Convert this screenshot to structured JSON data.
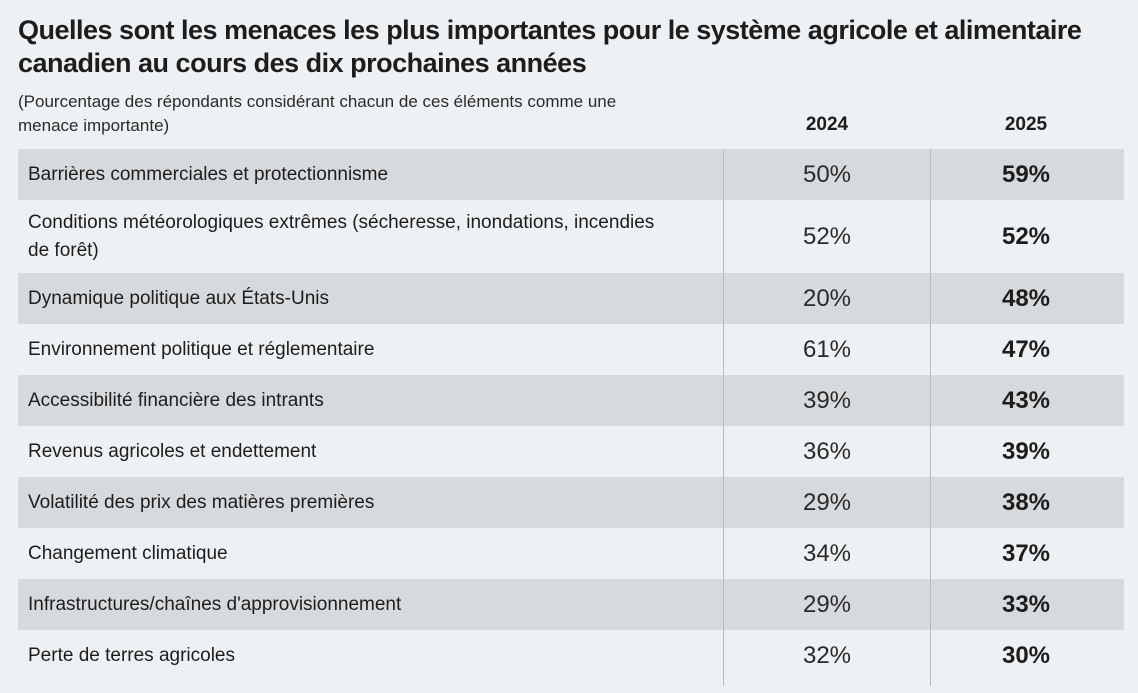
{
  "title": "Quelles sont les menaces les plus importantes pour le système agricole et alimentaire canadien au cours des dix prochaines années",
  "subtitle": "(Pourcentage des répondants considérant chacun de ces éléments comme une menace importante)",
  "columns": [
    "2024",
    "2025"
  ],
  "rows": [
    {
      "label": "Barrières commerciales et protectionnisme",
      "v2024": "50%",
      "v2025": "59%"
    },
    {
      "label": "Conditions météorologiques extrêmes (sécheresse, inondations, incendies de forêt)",
      "v2024": "52%",
      "v2025": "52%"
    },
    {
      "label": "Dynamique politique aux États-Unis",
      "v2024": "20%",
      "v2025": "48%"
    },
    {
      "label": "Environnement politique et réglementaire",
      "v2024": "61%",
      "v2025": "47%"
    },
    {
      "label": "Accessibilité financière des intrants",
      "v2024": "39%",
      "v2025": "43%"
    },
    {
      "label": "Revenus agricoles et endettement",
      "v2024": "36%",
      "v2025": "39%"
    },
    {
      "label": "Volatilité des prix des matières premières",
      "v2024": "29%",
      "v2025": "38%"
    },
    {
      "label": "Changement climatique",
      "v2024": "34%",
      "v2025": "37%"
    },
    {
      "label": "Infrastructures/chaînes d'approvisionnement",
      "v2024": "29%",
      "v2025": "33%"
    },
    {
      "label": "Perte de terres agricoles",
      "v2024": "32%",
      "v2025": "30%"
    }
  ],
  "chart_data": {
    "type": "table",
    "title": "Quelles sont les menaces les plus importantes pour le système agricole et alimentaire canadien au cours des dix prochaines années",
    "subtitle": "(Pourcentage des répondants considérant chacun de ces éléments comme une menace importante)",
    "categories": [
      "Barrières commerciales et protectionnisme",
      "Conditions météorologiques extrêmes (sécheresse, inondations, incendies de forêt)",
      "Dynamique politique aux États-Unis",
      "Environnement politique et réglementaire",
      "Accessibilité financière des intrants",
      "Revenus agricoles et endettement",
      "Volatilité des prix des matières premières",
      "Changement climatique",
      "Infrastructures/chaînes d'approvisionnement",
      "Perte de terres agricoles"
    ],
    "series": [
      {
        "name": "2024",
        "values": [
          50,
          52,
          20,
          61,
          39,
          36,
          29,
          34,
          29,
          32
        ]
      },
      {
        "name": "2025",
        "values": [
          59,
          52,
          48,
          47,
          43,
          39,
          38,
          37,
          33,
          30
        ]
      }
    ]
  },
  "colors": {
    "background": "#eef1f3",
    "row_shade": "#d7dadd",
    "divider": "#b9bcbf",
    "text": "#1d1d1d"
  }
}
